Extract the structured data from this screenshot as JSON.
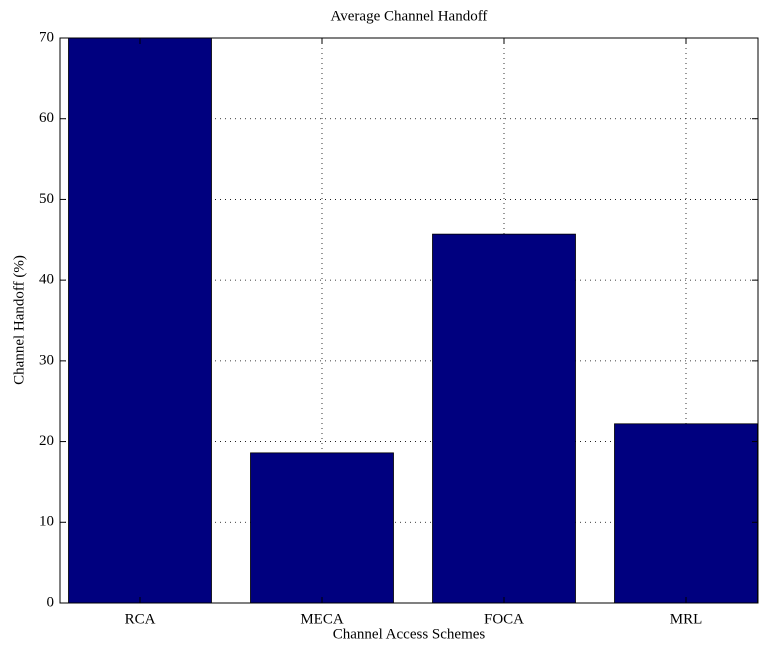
{
  "chart_data": {
    "type": "bar",
    "title": "Average Channel Handoff",
    "x_label": "Channel Access Schemes",
    "y_label": "Channel Handoff (%)",
    "categories": [
      "RCA",
      "MECA",
      "FOCA",
      "MRL"
    ],
    "values": [
      70,
      18.6,
      45.7,
      22.2
    ],
    "color": "#00007f",
    "ylim": [
      0,
      70
    ],
    "yticks": [
      0,
      10,
      20,
      30,
      40,
      50,
      60,
      70
    ],
    "grid": true
  }
}
